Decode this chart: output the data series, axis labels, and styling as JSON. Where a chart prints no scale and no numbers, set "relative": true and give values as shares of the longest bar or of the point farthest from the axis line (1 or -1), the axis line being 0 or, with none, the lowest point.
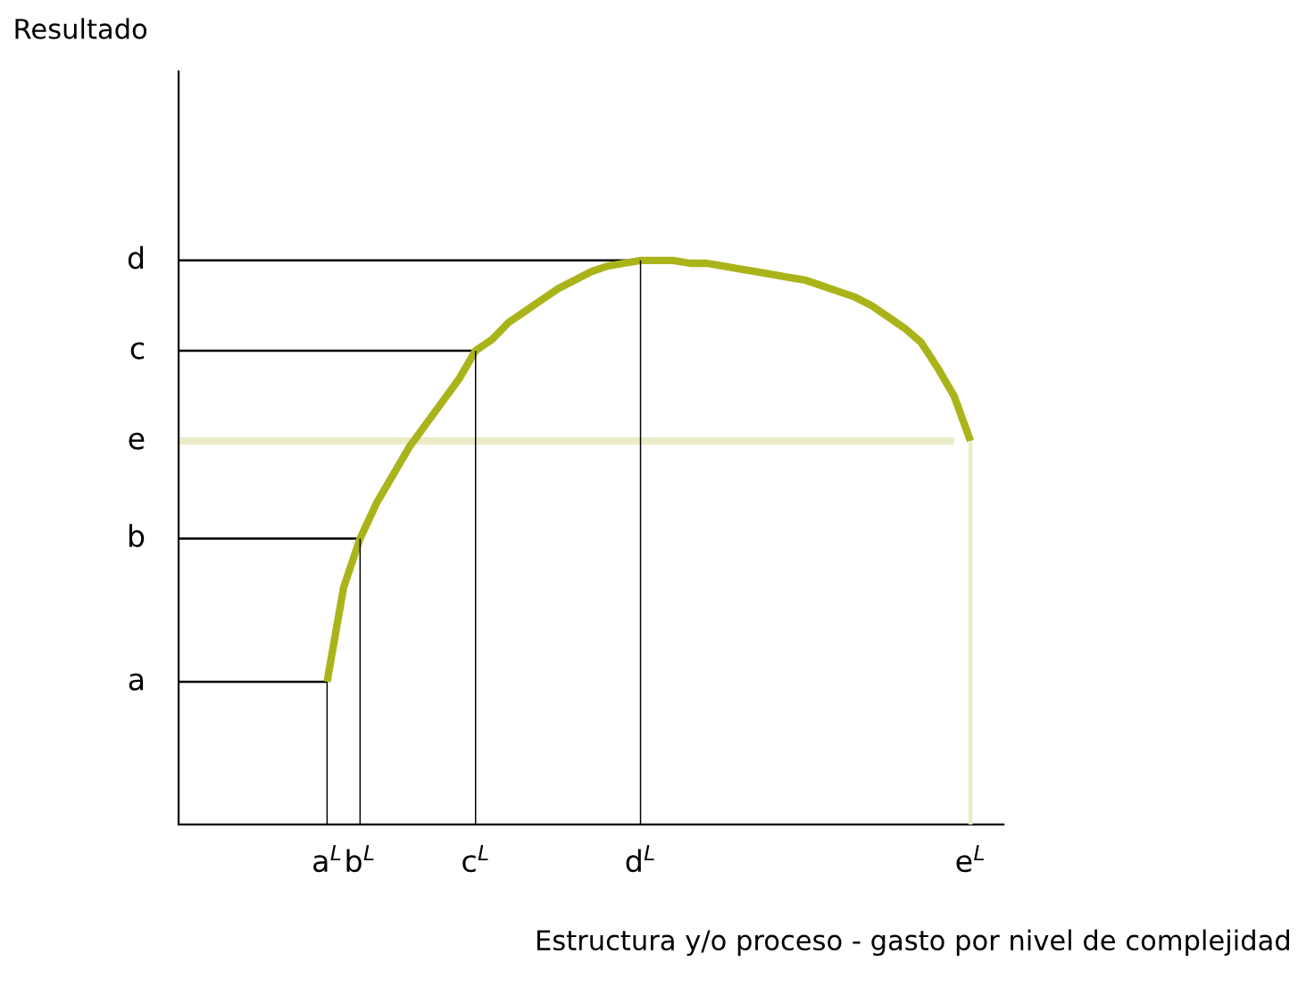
{
  "chart_data": {
    "type": "line",
    "relative": true,
    "xlabel": "Estructura y/o proceso - gasto por nivel de complejidad",
    "categories": [
      null,
      null,
      null,
      null,
      null,
      null,
      null,
      null,
      null,
      "a$^{L}$",
      null,
      "b$^{L}$",
      null,
      null,
      null,
      null,
      null,
      null,
      "c$^{L}$",
      null,
      null,
      null,
      null,
      null,
      null,
      null,
      null,
      null,
      "d$^{L}$",
      null,
      null,
      null,
      null,
      null,
      null,
      null,
      null,
      null,
      null,
      null,
      null,
      null,
      null,
      null,
      null,
      null,
      null,
      null,
      "e$^{L}$",
      null,
      null
    ],
    "annotations": [
      "a",
      "b",
      "e",
      "c",
      "d",
      "Resultado"
    ],
    "grid": false,
    "legend": false,
    "marker": "none",
    "line_style": "solid",
    "series": [
      {
        "color": "#000000",
        "values": [
          0.253,
          0.253,
          0.253,
          0.253,
          0.253,
          0.253,
          0.253,
          0.253,
          0.253,
          0.253,
          null,
          null,
          null,
          null,
          null,
          null,
          null,
          null,
          null,
          null,
          null,
          null,
          null,
          null,
          null,
          null,
          null,
          null,
          null,
          null,
          null,
          null,
          null,
          null,
          null,
          null,
          null,
          null,
          null,
          null,
          null,
          null,
          null,
          null,
          null,
          null,
          null,
          null,
          null,
          null,
          null
        ]
      },
      {
        "color": "#000000",
        "values": [
          0.507,
          0.507,
          0.507,
          0.507,
          0.507,
          0.507,
          0.507,
          0.507,
          0.507,
          0.507,
          0.507,
          0.507,
          null,
          null,
          null,
          null,
          null,
          null,
          null,
          null,
          null,
          null,
          null,
          null,
          null,
          null,
          null,
          null,
          null,
          null,
          null,
          null,
          null,
          null,
          null,
          null,
          null,
          null,
          null,
          null,
          null,
          null,
          null,
          null,
          null,
          null,
          null,
          null,
          null,
          null,
          null
        ]
      },
      {
        "color": "#ebebc8",
        "values": [
          0.68,
          0.68,
          0.68,
          0.68,
          0.68,
          0.68,
          0.68,
          0.68,
          0.68,
          0.68,
          0.68,
          0.68,
          0.68,
          0.68,
          0.68,
          0.68,
          0.68,
          0.68,
          0.68,
          0.68,
          0.68,
          0.68,
          0.68,
          0.68,
          0.68,
          0.68,
          0.68,
          0.68,
          0.68,
          0.68,
          0.68,
          0.68,
          0.68,
          0.68,
          0.68,
          0.68,
          0.68,
          0.68,
          0.68,
          0.68,
          0.68,
          0.68,
          0.68,
          0.68,
          0.68,
          0.68,
          0.68,
          0.68,
          null,
          null,
          null
        ]
      },
      {
        "color": "#000000",
        "values": [
          0.84,
          0.84,
          0.84,
          0.84,
          0.84,
          0.84,
          0.84,
          0.84,
          0.84,
          0.84,
          0.84,
          0.84,
          0.84,
          0.84,
          0.84,
          0.84,
          0.84,
          0.84,
          0.84,
          null,
          null,
          null,
          null,
          null,
          null,
          null,
          null,
          null,
          null,
          null,
          null,
          null,
          null,
          null,
          null,
          null,
          null,
          null,
          null,
          null,
          null,
          null,
          null,
          null,
          null,
          null,
          null,
          null,
          null,
          null,
          null
        ]
      },
      {
        "color": "#000000",
        "values": [
          1.0,
          1.0,
          1.0,
          1.0,
          1.0,
          1.0,
          1.0,
          1.0,
          1.0,
          1.0,
          1.0,
          1.0,
          1.0,
          1.0,
          1.0,
          1.0,
          1.0,
          1.0,
          1.0,
          1.0,
          1.0,
          1.0,
          1.0,
          1.0,
          1.0,
          1.0,
          1.0,
          1.0,
          1.0,
          null,
          null,
          null,
          null,
          null,
          null,
          null,
          null,
          null,
          null,
          null,
          null,
          null,
          null,
          null,
          null,
          null,
          null,
          null,
          null,
          null,
          null
        ]
      },
      {
        "type": "bar",
        "color": "#000000",
        "values": [
          null,
          null,
          null,
          null,
          null,
          null,
          null,
          null,
          null,
          0.253,
          null,
          0.507,
          null,
          null,
          null,
          null,
          null,
          null,
          0.84,
          null,
          null,
          null,
          null,
          null,
          null,
          null,
          null,
          null,
          1.0,
          null,
          null,
          null,
          null,
          null,
          null,
          null,
          null,
          null,
          null,
          null,
          null,
          null,
          null,
          null,
          null,
          null,
          null,
          null,
          null,
          null,
          null
        ]
      },
      {
        "type": "bar",
        "color": "#ebebc8",
        "values": [
          null,
          null,
          null,
          null,
          null,
          null,
          null,
          null,
          null,
          null,
          null,
          null,
          null,
          null,
          null,
          null,
          null,
          null,
          null,
          null,
          null,
          null,
          null,
          null,
          null,
          null,
          null,
          null,
          null,
          null,
          null,
          null,
          null,
          null,
          null,
          null,
          null,
          null,
          null,
          null,
          null,
          null,
          null,
          null,
          null,
          null,
          null,
          null,
          0.68,
          null,
          null
        ]
      },
      {
        "color": "#aab41a",
        "values": [
          null,
          null,
          null,
          null,
          null,
          null,
          null,
          null,
          null,
          0.253,
          0.42,
          0.507,
          0.57,
          0.62,
          0.67,
          0.71,
          0.75,
          0.79,
          0.84,
          0.86,
          0.89,
          0.91,
          0.93,
          0.95,
          0.965,
          0.98,
          0.99,
          0.995,
          1.0,
          1.0,
          1.0,
          0.995,
          0.995,
          0.99,
          0.985,
          0.98,
          0.975,
          0.97,
          0.965,
          0.955,
          0.945,
          0.935,
          0.92,
          0.9,
          0.88,
          0.855,
          0.81,
          0.76,
          0.68,
          null,
          null
        ]
      }
    ]
  }
}
